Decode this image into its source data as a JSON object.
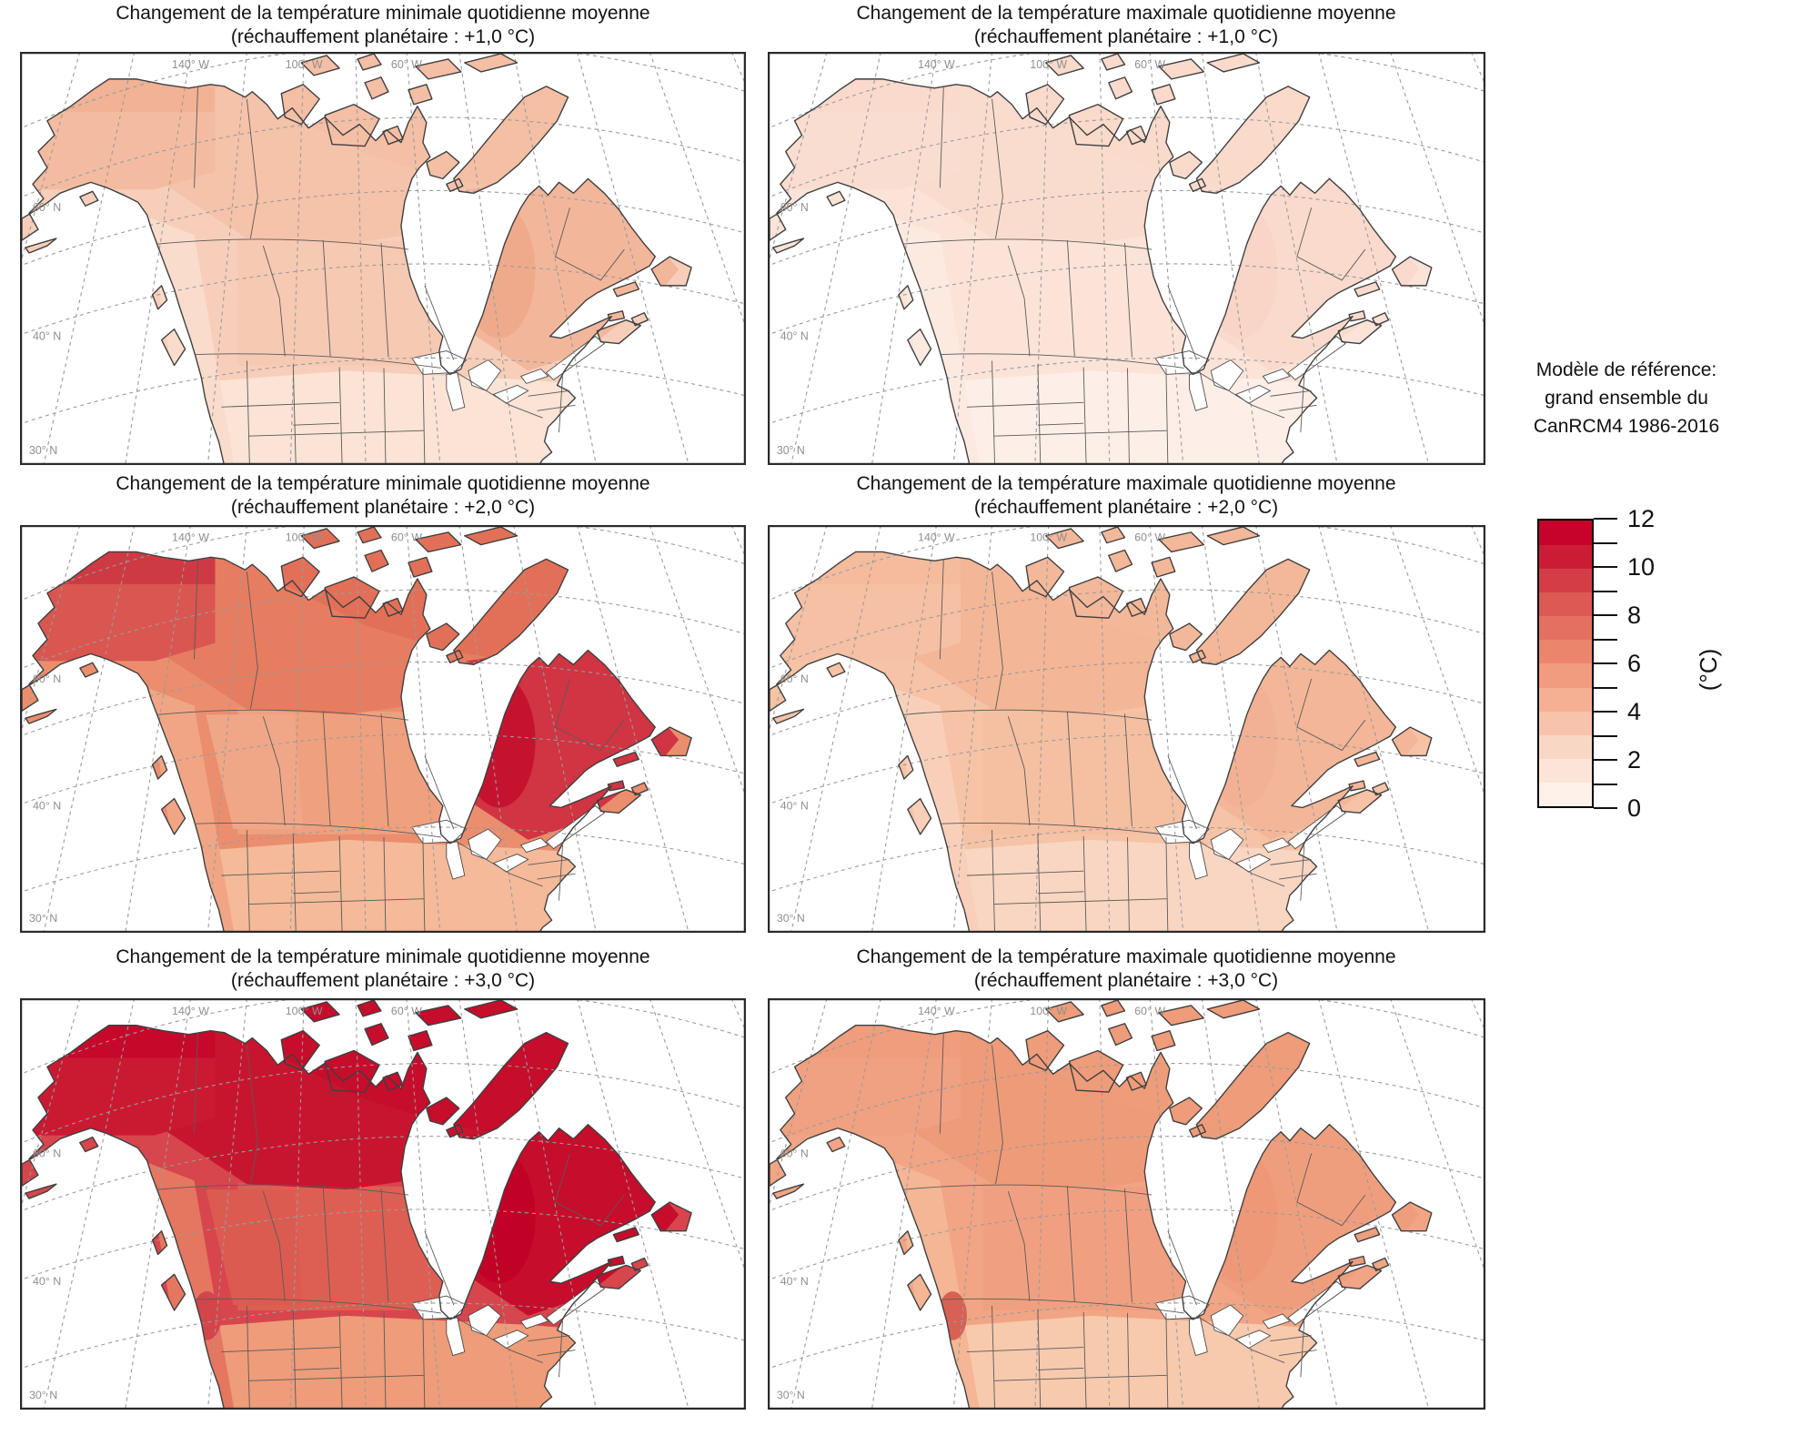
{
  "panels": [
    {
      "id": "tmin-plus1",
      "title_line1": "Changement de la température minimale quotidienne moyenne",
      "title_line2": "(réchauffement planétaire : +1,0 °C)",
      "variable": "température minimale quotidienne moyenne",
      "warming_level": "+1,0 °C",
      "approx_range_c": "1 à 3",
      "region_colors": {
        "base": "#F7CEBA",
        "prairie": "#F6C9B3",
        "bc_interior": null,
        "north_band": "#F5C2AA",
        "arctic": "#F4BFA5",
        "alaska": "#F3BCA1",
        "alaska_north": "#F1B295",
        "quebec": "#F2B79B",
        "quebec_core": "#EFAA8C",
        "south_band": "#FBE3D5",
        "west_strip": "#F9DCCC",
        "seattle_spot": null
      }
    },
    {
      "id": "tmax-plus1",
      "title_line1": "Changement de la température maximale quotidienne moyenne",
      "title_line2": "(réchauffement planétaire : +1,0 °C)",
      "variable": "température maximale quotidienne moyenne",
      "warming_level": "+1,0 °C",
      "approx_range_c": "1 à 2",
      "region_colors": {
        "base": "#FBE3D8",
        "prairie": null,
        "bc_interior": null,
        "north_band": "#FADCCE",
        "arctic": "#F9DACB",
        "alaska": "#FADDD1",
        "alaska_north": "#F9DACC",
        "quebec": "#F9DACC",
        "quebec_core": "#F8D5C6",
        "south_band": "#FDEFE8",
        "west_strip": "#FCEAE1",
        "seattle_spot": null
      }
    },
    {
      "id": "tmin-plus2",
      "title_line1": "Changement de la température minimale quotidienne moyenne",
      "title_line2": "(réchauffement planétaire : +2,0 °C)",
      "variable": "température minimale quotidienne moyenne",
      "warming_level": "+2,0 °C",
      "approx_range_c": "3 à 10",
      "region_colors": {
        "base": "#EB8E6E",
        "prairie": "#EFA07E",
        "bc_interior": "#F0A787",
        "north_band": "#E67D61",
        "arctic": "#E27058",
        "alaska": "#DA5650",
        "alaska_north": "#CE3A43",
        "quebec": "#D13442",
        "quebec_core": "#C5132F",
        "south_band": "#F4BA9A",
        "west_strip": "#F0A685",
        "seattle_spot": null
      }
    },
    {
      "id": "tmax-plus2",
      "title_line1": "Changement de la température maximale quotidienne moyenne",
      "title_line2": "(réchauffement planétaire : +2,0 °C)",
      "variable": "température maximale quotidienne moyenne",
      "warming_level": "+2,0 °C",
      "approx_range_c": "2 à 3",
      "region_colors": {
        "base": "#F6C3A6",
        "prairie": "#F5BFA1",
        "bc_interior": null,
        "north_band": "#F3B697",
        "arctic": "#F3B89A",
        "alaska": "#F5C0A3",
        "alaska_north": "#F4BB9D",
        "quebec": "#F3B698",
        "quebec_core": "#F2B194",
        "south_band": "#F9D6C2",
        "west_strip": "#F8D0BA",
        "seattle_spot": null
      }
    },
    {
      "id": "tmin-plus3",
      "title_line1": "Changement de la température minimale quotidienne moyenne",
      "title_line2": "(réchauffement planétaire : +3,0 °C)",
      "variable": "température minimale quotidienne moyenne",
      "warming_level": "+3,0 °C",
      "approx_range_c": "6 à 12",
      "region_colors": {
        "base": "#D7464C",
        "prairie": "#DD5F53",
        "bc_interior": "#DB5B50",
        "north_band": "#C8152F",
        "arctic": "#C60D2B",
        "alaska": "#CA1A32",
        "alaska_north": "#C6082A",
        "quebec": "#C60D2B",
        "quebec_core": "#C20127",
        "south_band": "#EE9C79",
        "west_strip": "#E57660",
        "seattle_spot": "#D4454B"
      }
    },
    {
      "id": "tmax-plus3",
      "title_line1": "Changement de la température maximale quotidienne moyenne",
      "title_line2": "(réchauffement planétaire : +3,0 °C)",
      "variable": "température maximale quotidienne moyenne",
      "warming_level": "+3,0 °C",
      "approx_range_c": "3 à 5",
      "region_colors": {
        "base": "#F1A584",
        "prairie": "#F0A080",
        "bc_interior": null,
        "north_band": "#EE9B79",
        "arctic": "#EE9C7A",
        "alaska": "#F0A181",
        "alaska_north": "#EF9D7C",
        "quebec": "#EF9E7D",
        "quebec_core": "#EE9877",
        "south_band": "#F7C9AD",
        "west_strip": "#F4B695",
        "seattle_spot": "#D96055"
      }
    }
  ],
  "map_labels": {
    "latitudes": [
      "60° N",
      "40° N",
      "30° N"
    ],
    "longitudes": [
      "140° W",
      "100° W",
      "60° W"
    ]
  },
  "legend": {
    "model_reference": [
      "Modèle de référence:",
      "grand ensemble du",
      "CanRCM4 1986-2016"
    ],
    "colorbar": {
      "unit": "(°C)",
      "min": 0,
      "max": 12,
      "minor_tick_step": 1,
      "labeled_ticks": [
        12,
        10,
        8,
        6,
        4,
        2,
        0
      ],
      "band_colors_low_to_high": [
        "#FDF1EA",
        "#FCE5D8",
        "#F9D7C5",
        "#F7C4AB",
        "#F5B093",
        "#F19C7F",
        "#EB866D",
        "#E47061",
        "#DD5954",
        "#D43D45",
        "#CB1C36",
        "#C5032B"
      ]
    }
  }
}
